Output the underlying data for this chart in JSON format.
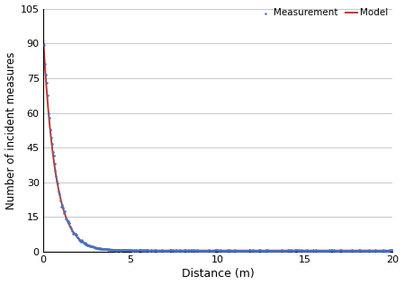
{
  "title": "",
  "xlabel": "Distance (m)",
  "ylabel": "Number of incident measures",
  "xlim": [
    0,
    20
  ],
  "ylim": [
    0,
    105
  ],
  "yticks": [
    0,
    15,
    30,
    45,
    60,
    75,
    90,
    105
  ],
  "xticks": [
    0,
    5,
    10,
    15,
    20
  ],
  "model_color": "#c0392b",
  "measurement_color": "#4472c4",
  "background_color": "#ffffff",
  "grid_color": "#bfbfbf",
  "model_params": {
    "A": 92.5,
    "b": 1.42,
    "C": 0.55
  },
  "meas_step": 0.05,
  "meas_noise_scale": 0.15,
  "legend_order": [
    "Measurement",
    "Model"
  ]
}
